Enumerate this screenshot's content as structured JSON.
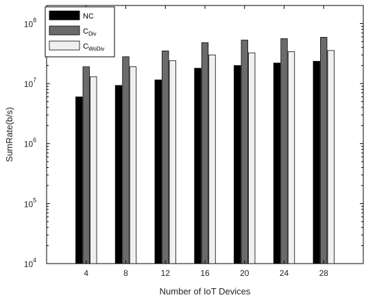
{
  "chart_data": {
    "type": "bar",
    "xlabel": "Number of IoT Devices",
    "ylabel": "SumRate(b/s)",
    "yscale": "log",
    "ylim": [
      10000,
      200000000
    ],
    "categories": [
      "4",
      "8",
      "12",
      "16",
      "20",
      "24",
      "28"
    ],
    "y_ticks": [
      {
        "value": 10000,
        "base": "10",
        "exp": "4"
      },
      {
        "value": 100000,
        "base": "10",
        "exp": "5"
      },
      {
        "value": 1000000,
        "base": "10",
        "exp": "6"
      },
      {
        "value": 10000000,
        "base": "10",
        "exp": "7"
      },
      {
        "value": 100000000,
        "base": "10",
        "exp": "8"
      }
    ],
    "legend_position": "top-left",
    "grid": false,
    "series": [
      {
        "name": "NC",
        "name_main": "NC",
        "name_sub": "",
        "color": "#000000",
        "values": [
          6000000,
          9300000,
          11500000,
          18000000,
          20000000,
          22000000,
          23500000
        ]
      },
      {
        "name": "CDiv",
        "name_main": "C",
        "name_sub": "Div",
        "color": "#6b6b6b",
        "values": [
          19000000,
          28000000,
          35000000,
          48000000,
          53000000,
          56000000,
          59000000
        ]
      },
      {
        "name": "CWoDiv",
        "name_main": "C",
        "name_sub": "WoDiv",
        "color": "#f0f0f0",
        "values": [
          13000000,
          19000000,
          24000000,
          30000000,
          32500000,
          34000000,
          35500000
        ]
      }
    ]
  }
}
